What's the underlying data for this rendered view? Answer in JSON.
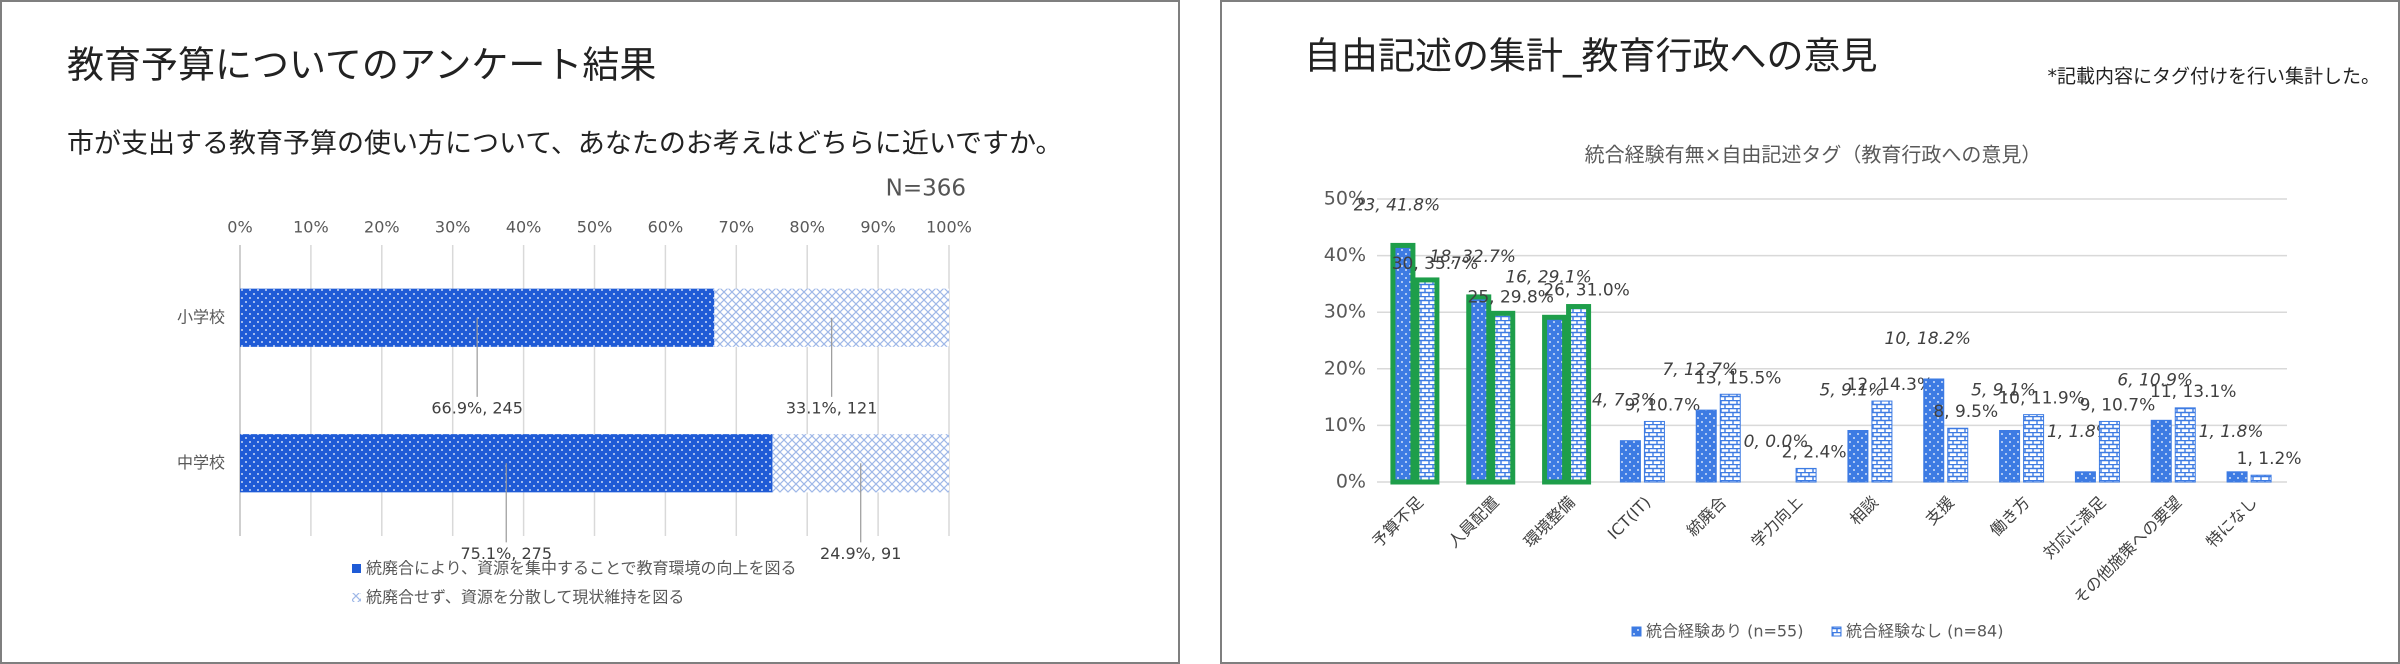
{
  "slides": [
    {
      "title": "教育予算についてのアンケート結果",
      "question": "市が支出する教育予算の使い方について、あなたのお考えはどちらに近いですか。",
      "note": "N=366"
    },
    {
      "title": "自由記述の集計_教育行政への意見",
      "note": "*記載内容にタグ付けを行い集計した。"
    }
  ],
  "chart_data": [
    {
      "type": "hbar",
      "stacked": true,
      "categories": [
        "小学校",
        "中学校"
      ],
      "series": [
        {
          "name": "統廃合により、資源を集中することで教育環境の向上を図る",
          "color": "#1f5bd6",
          "pattern": "dots",
          "values": [
            66.9,
            75.1
          ],
          "value_labels": [
            "66.9%, 245",
            "75.1%, 275"
          ]
        },
        {
          "name": "統廃合せず、資源を分散して現状維持を図る",
          "color": "#9fb8e8",
          "pattern": "cross",
          "values": [
            33.1,
            24.9
          ],
          "value_labels": [
            "33.1%, 121",
            "24.9%, 91"
          ]
        }
      ],
      "xlim": [
        0,
        100
      ],
      "xticks": [
        {
          "value": 0,
          "label": "0%"
        },
        {
          "value": 10,
          "label": "10%"
        },
        {
          "value": 20,
          "label": "20%"
        },
        {
          "value": 30,
          "label": "30%"
        },
        {
          "value": 40,
          "label": "40%"
        },
        {
          "value": 50,
          "label": "50%"
        },
        {
          "value": 60,
          "label": "60%"
        },
        {
          "value": 70,
          "label": "70%"
        },
        {
          "value": 80,
          "label": "80%"
        },
        {
          "value": 90,
          "label": "90%"
        },
        {
          "value": 100,
          "label": "100%"
        }
      ],
      "grid": true,
      "legend": "bottom"
    },
    {
      "type": "bar",
      "title": "統合経験有無×自由記述タグ（教育行政への意見）",
      "categories": [
        "予算不足",
        "人員配置",
        "環境整備",
        "ICT(IT)",
        "統廃合",
        "学力向上",
        "相談",
        "支援",
        "働き方",
        "対応に満足",
        "その他施策への要望",
        "特になし"
      ],
      "series": [
        {
          "name": "統合経験あり (n=55)",
          "color": "#3d7be3",
          "pattern": "dots",
          "values": [
            41.8,
            32.7,
            29.1,
            7.3,
            12.7,
            0.0,
            9.1,
            18.2,
            9.1,
            1.8,
            10.9,
            1.8
          ],
          "value_labels": [
            "23, 41.8%",
            "18, 32.7%",
            "16, 29.1%",
            "4, 7.3%",
            "7, 12.7%",
            "0, 0.0%",
            "5, 9.1%",
            "10, 18.2%",
            "5, 9.1%",
            "1, 1.8%",
            "6, 10.9%",
            "1, 1.8%"
          ]
        },
        {
          "name": "統合経験なし (n=84)",
          "color": "#3d7be3",
          "pattern": "bricks",
          "values": [
            35.7,
            29.8,
            31.0,
            10.7,
            15.5,
            2.4,
            14.3,
            9.5,
            11.9,
            10.7,
            13.1,
            1.2
          ],
          "value_labels": [
            "30, 35.7%",
            "25, 29.8%",
            "26, 31.0%",
            "9, 10.7%",
            "13, 15.5%",
            "2, 2.4%",
            "12, 14.3%",
            "8, 9.5%",
            "10, 11.9%",
            "9, 10.7%",
            "11, 13.1%",
            "1, 1.2%"
          ]
        }
      ],
      "ylim": [
        0,
        50
      ],
      "yticks": [
        {
          "value": 0,
          "label": "0%"
        },
        {
          "value": 10,
          "label": "10%"
        },
        {
          "value": 20,
          "label": "20%"
        },
        {
          "value": 30,
          "label": "30%"
        },
        {
          "value": 40,
          "label": "40%"
        },
        {
          "value": 50,
          "label": "50%"
        }
      ],
      "grid": true,
      "legend": "bottom",
      "highlight": [
        0,
        1,
        2
      ],
      "highlight_color": "#1e9e4a"
    }
  ]
}
